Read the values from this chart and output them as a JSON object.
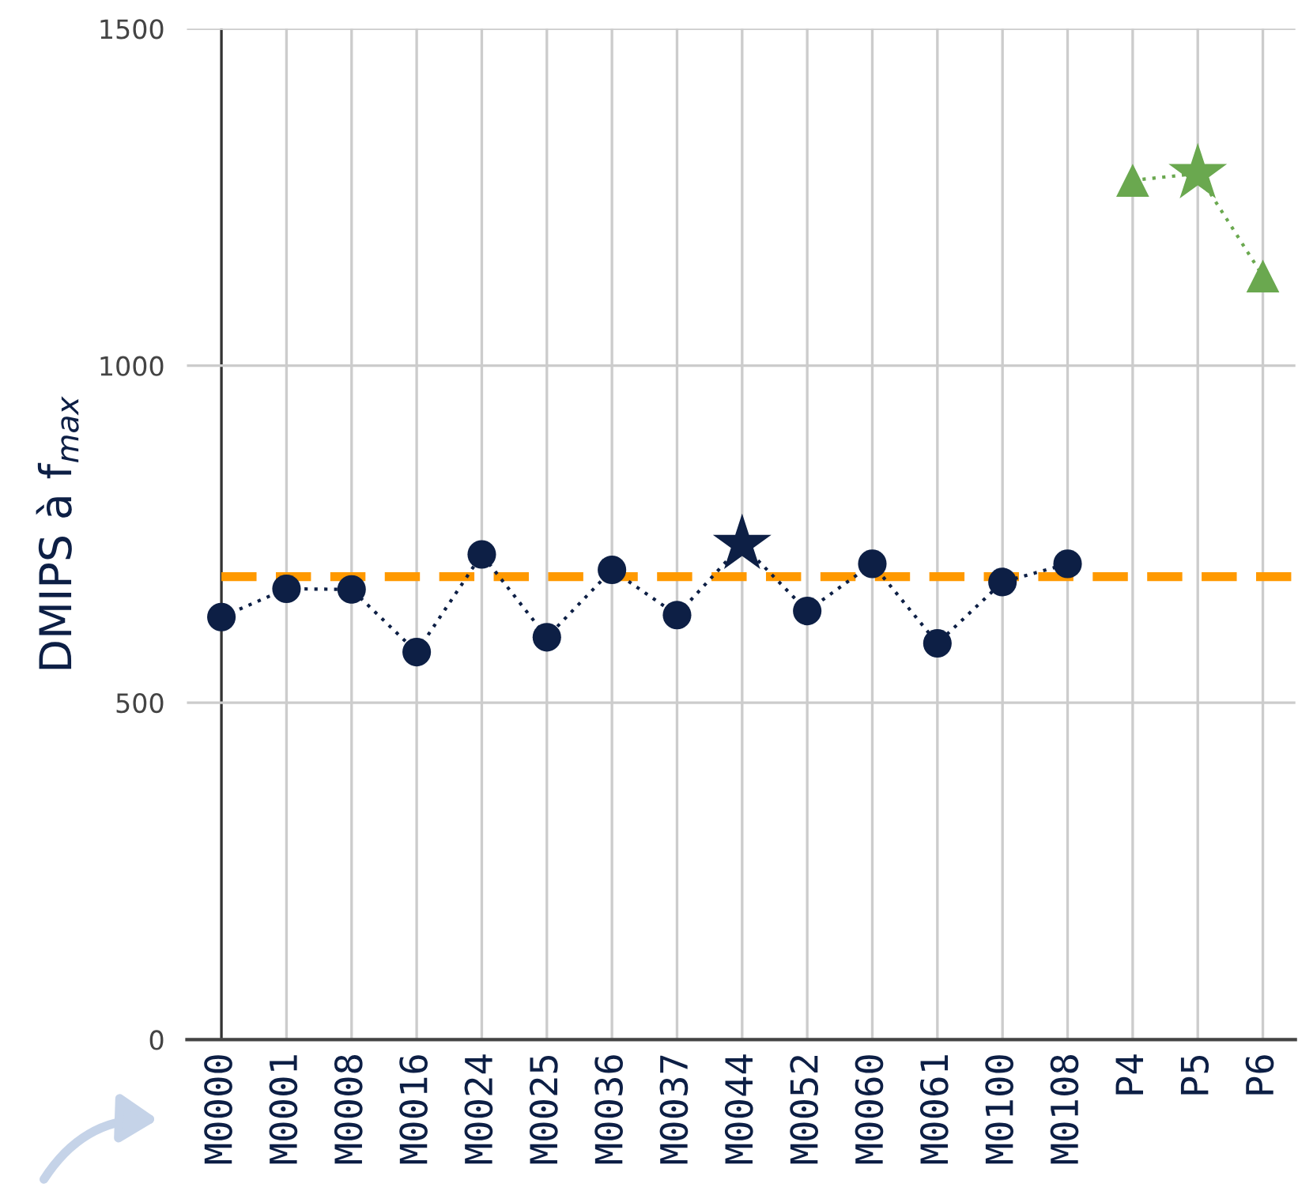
{
  "chart_data": {
    "type": "line",
    "ylabel": "DMIPS à f$_{max}$",
    "categories": [
      "M0000",
      "M0001",
      "M0008",
      "M0016",
      "M0024",
      "M0025",
      "M0036",
      "M0037",
      "M0044",
      "M0052",
      "M0060",
      "M0061",
      "M0100",
      "M0108",
      "P4",
      "P5",
      "P6"
    ],
    "series": [
      {
        "color": "#0d1f45",
        "marker": "none",
        "line_style": "dotted",
        "values": [
          627,
          669,
          668,
          575,
          720,
          597,
          697,
          630,
          735,
          636,
          706,
          588,
          679,
          706,
          null,
          null,
          null
        ]
      },
      {
        "type": "scatter",
        "color": "#0d1f45",
        "marker": "circle",
        "values": [
          627,
          669,
          668,
          575,
          720,
          597,
          697,
          630,
          null,
          636,
          706,
          588,
          679,
          706,
          null,
          null,
          null
        ]
      },
      {
        "type": "scatter",
        "color": "#0d1f45",
        "marker": "star",
        "values": [
          null,
          null,
          null,
          null,
          null,
          null,
          null,
          null,
          735,
          null,
          null,
          null,
          null,
          null,
          null,
          null,
          null
        ]
      },
      {
        "color": "#6aa84f",
        "marker": "none",
        "line_style": "dotted",
        "values": [
          null,
          null,
          null,
          null,
          null,
          null,
          null,
          null,
          null,
          null,
          null,
          null,
          null,
          null,
          1275,
          1285,
          1133
        ]
      },
      {
        "type": "scatter",
        "color": "#6aa84f",
        "marker": "triangle",
        "values": [
          null,
          null,
          null,
          null,
          null,
          null,
          null,
          null,
          null,
          null,
          null,
          null,
          null,
          null,
          1275,
          null,
          1133
        ]
      },
      {
        "type": "scatter",
        "color": "#6aa84f",
        "marker": "star",
        "values": [
          null,
          null,
          null,
          null,
          null,
          null,
          null,
          null,
          null,
          null,
          null,
          null,
          null,
          null,
          null,
          1285,
          null
        ]
      }
    ],
    "ref_lines": [
      {
        "axis": "y",
        "value": 687,
        "color": "#ff9900",
        "line_style": "dashed"
      }
    ],
    "ylim": [
      0,
      1500
    ],
    "yticks": [
      0,
      500,
      1000,
      1500
    ],
    "grid": true,
    "legend": false
  }
}
